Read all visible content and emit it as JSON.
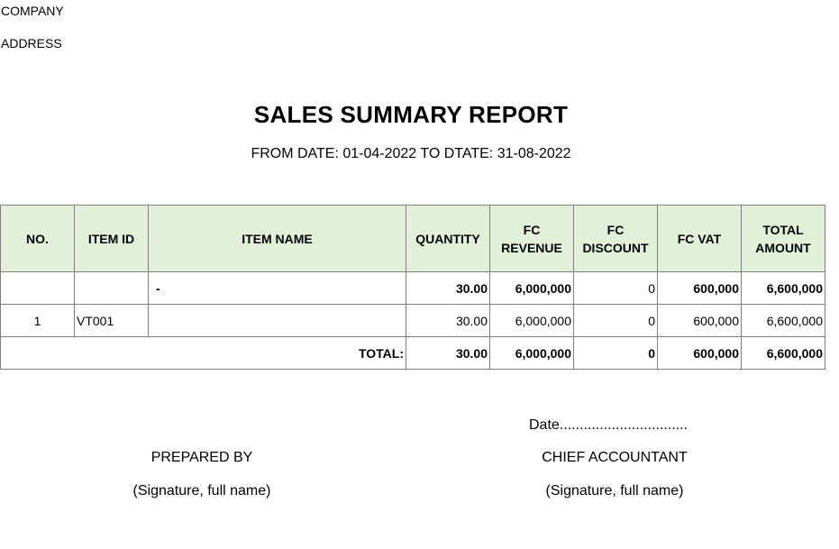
{
  "header": {
    "company": "COMPANY",
    "address": "ADDRESS",
    "title": "SALES SUMMARY REPORT",
    "date_range": "FROM DATE: 01-04-2022 TO DTATE: 31-08-2022"
  },
  "table": {
    "columns": {
      "no": "NO.",
      "item_id": "ITEM ID",
      "item_name": "ITEM NAME",
      "quantity": "QUANTITY",
      "fc_revenue": "FC REVENUE",
      "fc_discount": "FC DISCOUNT",
      "fc_vat": "FC VAT",
      "total_amount": "TOTAL AMOUNT"
    },
    "group_row": {
      "no": "",
      "item_id": "",
      "item_name": "-",
      "quantity": "30.00",
      "fc_revenue": "6,000,000",
      "fc_discount": "0",
      "fc_vat": "600,000",
      "total_amount": "6,600,000"
    },
    "rows": [
      {
        "no": "1",
        "item_id": "VT001",
        "item_name": "",
        "quantity": "30.00",
        "fc_revenue": "6,000,000",
        "fc_discount": "0",
        "fc_vat": "600,000",
        "total_amount": "6,600,000"
      }
    ],
    "total_row": {
      "label": "TOTAL:",
      "quantity": "30.00",
      "fc_revenue": "6,000,000",
      "fc_discount": "0",
      "fc_vat": "600,000",
      "total_amount": "6,600,000"
    }
  },
  "signatures": {
    "date_line": "Date................................",
    "prepared_by": "PREPARED BY",
    "prepared_by_note": "(Signature, full name)",
    "chief_accountant": "CHIEF ACCOUNTANT",
    "chief_accountant_note": "(Signature, full name)"
  }
}
